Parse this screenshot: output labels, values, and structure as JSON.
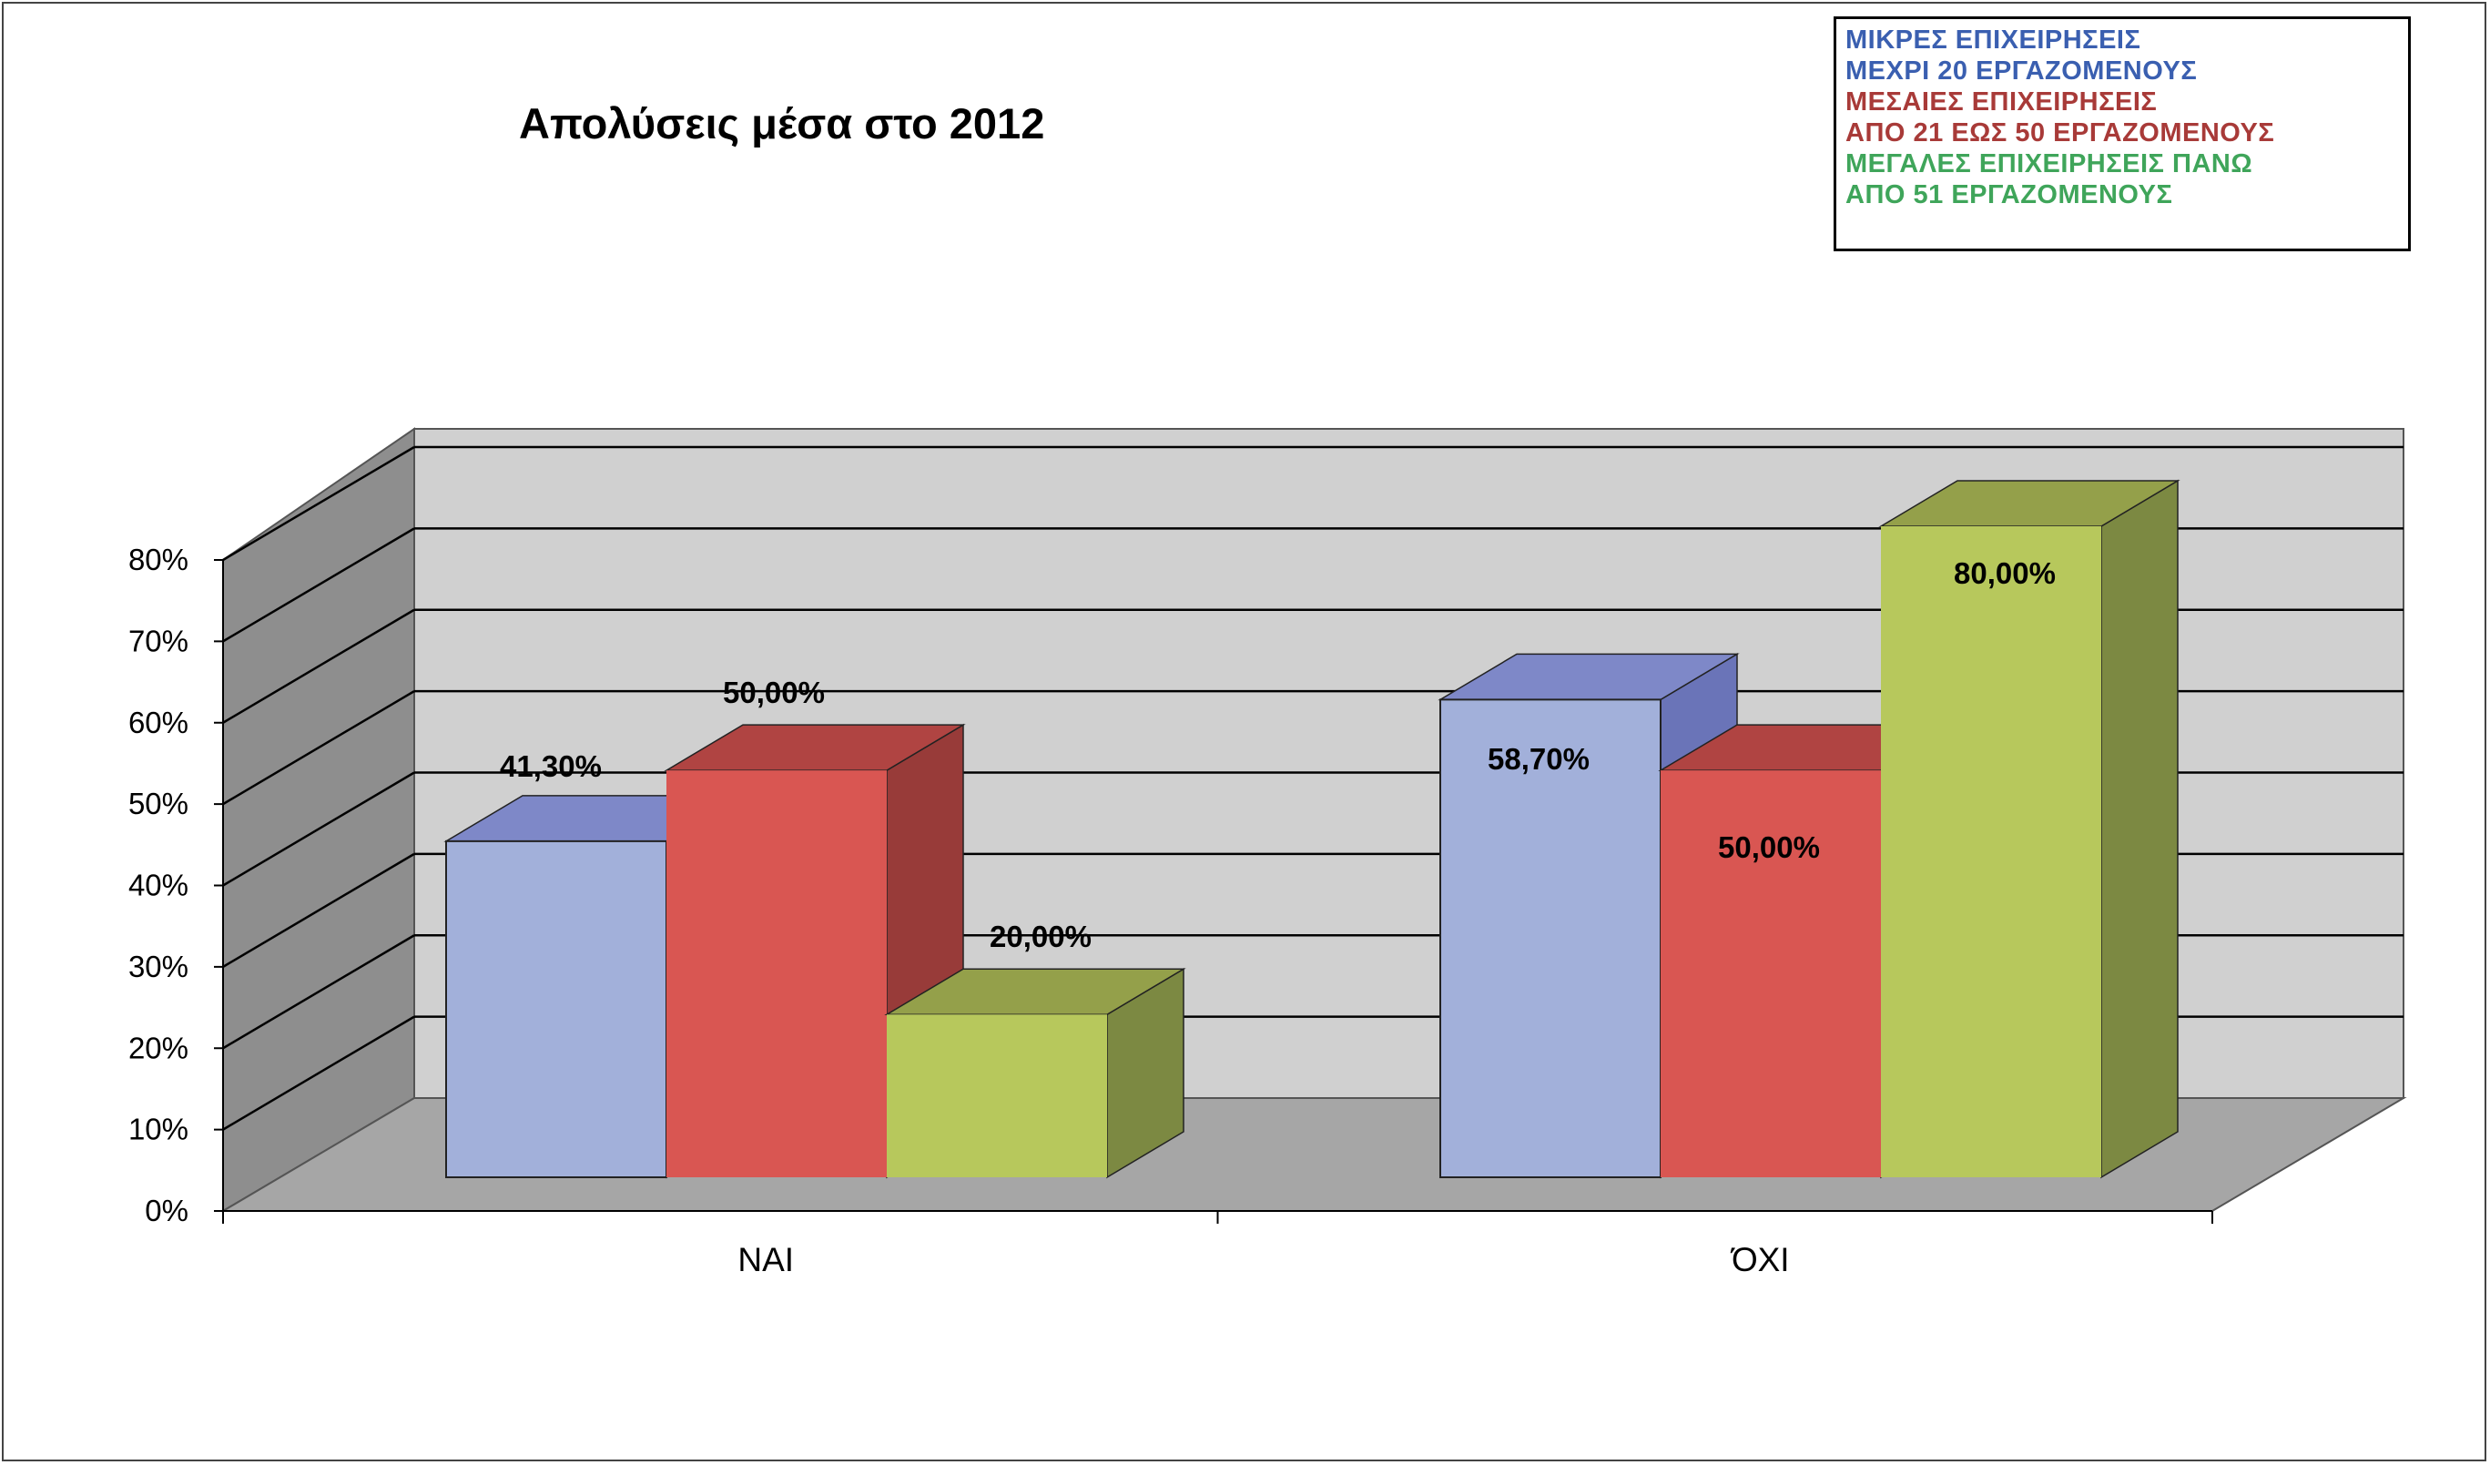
{
  "chart_data": {
    "type": "bar",
    "title": "Απολύσεις μέσα στο 2012",
    "categories": [
      "ΝΑΙ",
      "ΌΧΙ"
    ],
    "series": [
      {
        "name": "ΜΙΚΡΕΣ ΕΠΙΧΕΙΡΗΣΕΙΣ ΜΕΧΡΙ  20 ΕΡΓΑΖΟΜΕΝΟΥΣ",
        "values": [
          41.3,
          58.7
        ],
        "labels": [
          "41,30%",
          "58,70%"
        ]
      },
      {
        "name": "ΜΕΣΑΙΕΣ ΕΠΙΧΕΙΡΗΣΕΙΣ ΑΠΟ 21 ΕΩΣ 50 ΕΡΓΑΖΟΜΕΝΟΥΣ",
        "values": [
          50,
          50
        ],
        "labels": [
          "50,00%",
          "50,00%"
        ]
      },
      {
        "name": "ΜΕΓΑΛΕΣ ΕΠΙΧΕΙΡΗΣΕΙΣ ΠΑΝΩ ΑΠΟ 51 ΕΡΓΑΖΟΜΕΝΟΥΣ",
        "values": [
          20,
          80
        ],
        "labels": [
          "20,00%",
          "80,00%"
        ]
      }
    ],
    "yticks": [
      "0%",
      "10%",
      "20%",
      "30%",
      "40%",
      "50%",
      "60%",
      "70%",
      "80%"
    ],
    "ylim": [
      0,
      80
    ],
    "grid": true,
    "legend": "top-right",
    "xlabel": "",
    "ylabel": ""
  },
  "legend": {
    "lines": [
      "ΜΙΚΡΕΣ ΕΠΙΧΕΙΡΗΣΕΙΣ",
      "ΜΕΧΡΙ  20 ΕΡΓΑΖΟΜΕΝΟΥΣ",
      "ΜΕΣΑΙΕΣ ΕΠΙΧΕΙΡΗΣΕΙΣ",
      "ΑΠΟ 21 ΕΩΣ 50 ΕΡΓΑΖΟΜΕΝΟΥΣ",
      "ΜΕΓΑΛΕΣ ΕΠΙΧΕΙΡΗΣΕΙΣ ΠΑΝΩ",
      "ΑΠΟ 51 ΕΡΓΑΖΟΜΕΝΟΥΣ"
    ]
  },
  "colors": {
    "series_front": [
      "#a2b0da",
      "#d95652",
      "#b7c85c"
    ],
    "series_top": [
      "#7e88c8",
      "#b04442",
      "#94a04a"
    ],
    "series_side": [
      "#6a74b8",
      "#983b39",
      "#7c8942"
    ],
    "legend_text": [
      "#3a5fb0",
      "#3a5fb0",
      "#a83a38",
      "#a83a38",
      "#3fa55a",
      "#3fa55a"
    ],
    "back_wall": "#d0d0d0",
    "side_wall": "#8e8e8e",
    "floor": "#a6a6a6"
  }
}
